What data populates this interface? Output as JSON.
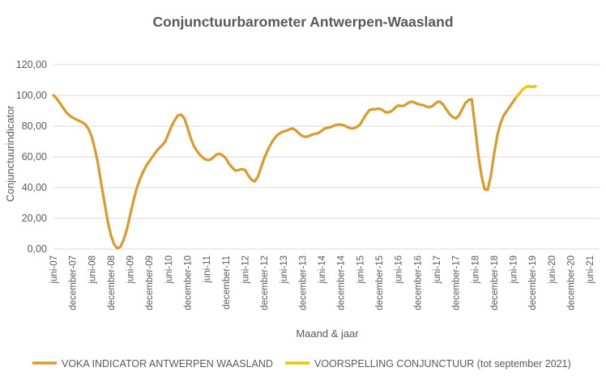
{
  "chart_data": {
    "type": "line",
    "title": "Conjunctuurbarometer Antwerpen-Waasland",
    "xlabel": "Maand & jaar",
    "ylabel": "Conjunctuurindicator",
    "ylim": [
      0,
      120
    ],
    "y_ticks": [
      "0,00",
      "20,00",
      "40,00",
      "60,00",
      "80,00",
      "100,00",
      "120,00"
    ],
    "x_start": "2007-06",
    "x_end": "2021-09",
    "x_tick_labels": [
      "juni-07",
      "december-07",
      "juni-08",
      "december-08",
      "juni-09",
      "december-09",
      "juni-10",
      "december-10",
      "juni-11",
      "december-11",
      "juni-12",
      "december-12",
      "juni-13",
      "december-13",
      "juni-14",
      "december-14",
      "juni-15",
      "december-15",
      "juni-16",
      "december-16",
      "juni-17",
      "december-17",
      "juni-18",
      "december-18",
      "juni-19",
      "december-19",
      "juni-20",
      "december-20",
      "juni-21"
    ],
    "grid": "horizontal",
    "legend_position": "bottom",
    "series": [
      {
        "name": "VOKA INDICATOR ANTWERPEN WAASLAND",
        "color": "#DC9A2A",
        "points": [
          [
            "2007-06",
            100
          ],
          [
            "2007-07",
            98
          ],
          [
            "2007-08",
            95
          ],
          [
            "2007-09",
            92
          ],
          [
            "2007-10",
            89
          ],
          [
            "2007-11",
            87
          ],
          [
            "2007-12",
            85.5
          ],
          [
            "2008-01",
            84.5
          ],
          [
            "2008-02",
            83.5
          ],
          [
            "2008-03",
            82.5
          ],
          [
            "2008-04",
            81
          ],
          [
            "2008-05",
            78
          ],
          [
            "2008-06",
            73
          ],
          [
            "2008-07",
            65
          ],
          [
            "2008-08",
            55
          ],
          [
            "2008-09",
            42
          ],
          [
            "2008-10",
            30
          ],
          [
            "2008-11",
            18
          ],
          [
            "2008-12",
            9
          ],
          [
            "2009-01",
            3
          ],
          [
            "2009-02",
            0.5
          ],
          [
            "2009-03",
            1.5
          ],
          [
            "2009-04",
            6
          ],
          [
            "2009-05",
            13
          ],
          [
            "2009-06",
            22
          ],
          [
            "2009-07",
            31
          ],
          [
            "2009-08",
            39
          ],
          [
            "2009-09",
            45
          ],
          [
            "2009-10",
            50
          ],
          [
            "2009-11",
            54
          ],
          [
            "2009-12",
            57
          ],
          [
            "2010-01",
            60
          ],
          [
            "2010-02",
            63
          ],
          [
            "2010-03",
            65.5
          ],
          [
            "2010-04",
            67.5
          ],
          [
            "2010-05",
            70
          ],
          [
            "2010-06",
            75
          ],
          [
            "2010-07",
            80
          ],
          [
            "2010-08",
            84
          ],
          [
            "2010-09",
            87
          ],
          [
            "2010-10",
            87.5
          ],
          [
            "2010-11",
            85
          ],
          [
            "2010-12",
            79
          ],
          [
            "2011-01",
            72
          ],
          [
            "2011-02",
            67
          ],
          [
            "2011-03",
            63.5
          ],
          [
            "2011-04",
            61
          ],
          [
            "2011-05",
            59
          ],
          [
            "2011-06",
            58
          ],
          [
            "2011-07",
            58
          ],
          [
            "2011-08",
            59.5
          ],
          [
            "2011-09",
            61.5
          ],
          [
            "2011-10",
            62
          ],
          [
            "2011-11",
            61
          ],
          [
            "2011-12",
            59
          ],
          [
            "2012-01",
            55.5
          ],
          [
            "2012-02",
            53
          ],
          [
            "2012-03",
            51
          ],
          [
            "2012-04",
            51.5
          ],
          [
            "2012-05",
            52
          ],
          [
            "2012-06",
            51.5
          ],
          [
            "2012-07",
            48
          ],
          [
            "2012-08",
            45
          ],
          [
            "2012-09",
            44
          ],
          [
            "2012-10",
            47
          ],
          [
            "2012-11",
            53
          ],
          [
            "2012-12",
            59
          ],
          [
            "2013-01",
            64
          ],
          [
            "2013-02",
            68
          ],
          [
            "2013-03",
            71.5
          ],
          [
            "2013-04",
            74
          ],
          [
            "2013-05",
            75.5
          ],
          [
            "2013-06",
            76.5
          ],
          [
            "2013-07",
            77
          ],
          [
            "2013-08",
            78
          ],
          [
            "2013-09",
            78.5
          ],
          [
            "2013-10",
            77
          ],
          [
            "2013-11",
            75
          ],
          [
            "2013-12",
            73.5
          ],
          [
            "2014-01",
            73
          ],
          [
            "2014-02",
            73.5
          ],
          [
            "2014-03",
            74.5
          ],
          [
            "2014-04",
            75
          ],
          [
            "2014-05",
            75.5
          ],
          [
            "2014-06",
            77
          ],
          [
            "2014-07",
            78.5
          ],
          [
            "2014-08",
            79
          ],
          [
            "2014-09",
            79.5
          ],
          [
            "2014-10",
            80.5
          ],
          [
            "2014-11",
            81
          ],
          [
            "2014-12",
            81
          ],
          [
            "2015-01",
            80.5
          ],
          [
            "2015-02",
            79.5
          ],
          [
            "2015-03",
            78.5
          ],
          [
            "2015-04",
            78.5
          ],
          [
            "2015-05",
            79.5
          ],
          [
            "2015-06",
            81
          ],
          [
            "2015-07",
            84.5
          ],
          [
            "2015-08",
            88
          ],
          [
            "2015-09",
            90.5
          ],
          [
            "2015-10",
            91
          ],
          [
            "2015-11",
            91
          ],
          [
            "2015-12",
            91.5
          ],
          [
            "2016-01",
            90.5
          ],
          [
            "2016-02",
            89
          ],
          [
            "2016-03",
            89
          ],
          [
            "2016-04",
            90
          ],
          [
            "2016-05",
            92
          ],
          [
            "2016-06",
            93.5
          ],
          [
            "2016-07",
            93
          ],
          [
            "2016-08",
            93.5
          ],
          [
            "2016-09",
            95
          ],
          [
            "2016-10",
            96
          ],
          [
            "2016-11",
            95.5
          ],
          [
            "2016-12",
            94.5
          ],
          [
            "2017-01",
            94
          ],
          [
            "2017-02",
            93.5
          ],
          [
            "2017-03",
            92.5
          ],
          [
            "2017-04",
            92.5
          ],
          [
            "2017-05",
            93.5
          ],
          [
            "2017-06",
            95.5
          ],
          [
            "2017-07",
            96
          ],
          [
            "2017-08",
            94
          ],
          [
            "2017-09",
            91
          ],
          [
            "2017-10",
            88
          ],
          [
            "2017-11",
            86
          ],
          [
            "2017-12",
            85
          ],
          [
            "2018-01",
            87
          ],
          [
            "2018-02",
            91
          ],
          [
            "2018-03",
            95
          ],
          [
            "2018-04",
            97
          ],
          [
            "2018-05",
            97.5
          ],
          [
            "2018-06",
            80
          ],
          [
            "2018-07",
            62
          ],
          [
            "2018-08",
            48
          ],
          [
            "2018-09",
            39
          ],
          [
            "2018-10",
            38.5
          ],
          [
            "2018-11",
            48
          ],
          [
            "2018-12",
            62
          ],
          [
            "2019-01",
            74
          ],
          [
            "2019-02",
            82
          ],
          [
            "2019-03",
            87
          ],
          [
            "2019-04",
            90
          ],
          [
            "2019-05",
            93
          ],
          [
            "2019-06",
            96
          ],
          [
            "2019-07",
            99
          ]
        ]
      },
      {
        "name": "VOORSPELLING CONJUNCTUUR (tot september 2021)",
        "color": "#F2C400",
        "points": [
          [
            "2019-07",
            99
          ],
          [
            "2019-08",
            101.5
          ],
          [
            "2019-09",
            104
          ],
          [
            "2019-10",
            105.5
          ],
          [
            "2019-11",
            106
          ],
          [
            "2019-12",
            105.5
          ],
          [
            "2020-01",
            106
          ]
        ]
      }
    ]
  }
}
